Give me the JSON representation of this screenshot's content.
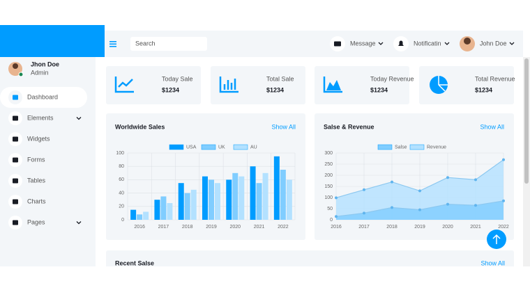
{
  "sidebar": {
    "user": {
      "name": "Jhon Doe",
      "role": "Admin"
    },
    "menu": [
      "Dashboard",
      "Elements",
      "Widgets",
      "Forms",
      "Tables",
      "Charts",
      "Pages"
    ]
  },
  "topbar": {
    "search_placeholder": "Search",
    "message": "Message",
    "notification": "Notificatin",
    "user": "John Doe"
  },
  "stats": [
    {
      "label": "Today Sale",
      "value": "$1234"
    },
    {
      "label": "Total Sale",
      "value": "$1234"
    },
    {
      "label": "Today Revenue",
      "value": "$1234"
    },
    {
      "label": "Total Revenue",
      "value": "$1234"
    }
  ],
  "chart_data": [
    {
      "type": "bar",
      "title": "Worldwide Sales",
      "link": "Show All",
      "categories": [
        "2016",
        "2017",
        "2018",
        "2019",
        "2020",
        "2021",
        "2022"
      ],
      "series": [
        {
          "name": "USA",
          "color": "#009cff",
          "values": [
            15,
            30,
            55,
            65,
            60,
            80,
            95
          ]
        },
        {
          "name": "UK",
          "color": "#80cdff",
          "values": [
            8,
            35,
            40,
            60,
            70,
            55,
            75
          ]
        },
        {
          "name": "AU",
          "color": "#b3e1ff",
          "values": [
            12,
            25,
            45,
            55,
            65,
            70,
            60
          ]
        }
      ],
      "ylim": [
        0,
        100
      ],
      "yticks": [
        0,
        20,
        40,
        60,
        80,
        100
      ],
      "grid": true,
      "legend": "top"
    },
    {
      "type": "line",
      "title": "Salse & Revenue",
      "link": "Show All",
      "categories": [
        "2016",
        "2017",
        "2018",
        "2019",
        "2020",
        "2021",
        "2022"
      ],
      "series": [
        {
          "name": "Salse",
          "color": "#80cdff",
          "values": [
            15,
            30,
            55,
            45,
            70,
            65,
            85
          ]
        },
        {
          "name": "Revenue",
          "color": "#b3e1ff",
          "values": [
            99,
            135,
            170,
            130,
            190,
            180,
            270
          ]
        }
      ],
      "ylim": [
        0,
        300
      ],
      "yticks": [
        0,
        50,
        100,
        150,
        200,
        250,
        300
      ],
      "grid": true,
      "legend": "top"
    }
  ],
  "recent": {
    "title": "Recent Salse",
    "link": "Show All"
  }
}
